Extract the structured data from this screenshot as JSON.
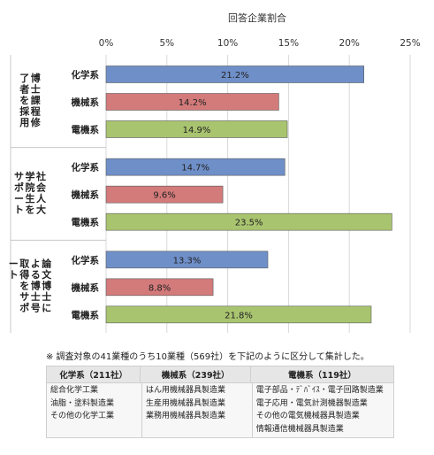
{
  "chart_data": {
    "type": "bar",
    "orientation": "horizontal",
    "title": "回答企業割合",
    "x_ticks": [
      "0%",
      "5%",
      "10%",
      "15%",
      "20%",
      "25%"
    ],
    "xlim": [
      0,
      25
    ],
    "grid": true,
    "colors": {
      "化学系": "#6f8fc8",
      "機械系": "#d37a7a",
      "電機系": "#a9c46f"
    },
    "groups": [
      {
        "label": "博士課程修了者を採用",
        "bars": [
          {
            "category": "化学系",
            "value": 21.2,
            "label": "21.2%"
          },
          {
            "category": "機械系",
            "value": 14.2,
            "label": "14.2%"
          },
          {
            "category": "電機系",
            "value": 14.9,
            "label": "14.9%"
          }
        ]
      },
      {
        "label": "社会人大学院生をサポート",
        "bars": [
          {
            "category": "化学系",
            "value": 14.7,
            "label": "14.7%"
          },
          {
            "category": "機械系",
            "value": 9.6,
            "label": "9.6%"
          },
          {
            "category": "電機系",
            "value": 23.5,
            "label": "23.5%"
          }
        ]
      },
      {
        "label": "論文博士による博士号取得をサポート",
        "bars": [
          {
            "category": "化学系",
            "value": 13.3,
            "label": "13.3%"
          },
          {
            "category": "機械系",
            "value": 8.8,
            "label": "8.8%"
          },
          {
            "category": "電機系",
            "value": 21.8,
            "label": "21.8%"
          }
        ]
      }
    ]
  },
  "note": "※ 調査対象の41業種のうち10業種（569社）を下記のように区分して集計した。",
  "category_table": {
    "columns": [
      {
        "header": "化学系（211社）",
        "items": [
          "総合化学工業",
          "油脂・塗料製造業",
          "その他の化学工業"
        ]
      },
      {
        "header": "機械系（239社）",
        "items": [
          "はん用機械器具製造業",
          "生産用機械器具製造業",
          "業務用機械器具製造業"
        ]
      },
      {
        "header": "電機系（119社）",
        "items": [
          "電子部品・ﾃﾞﾊﾞｲｽ・電子回路製造業",
          "電子応用・電気計測機器製造業",
          "その他の電気機械器具製造業",
          "情報通信機械器具製造業"
        ]
      }
    ]
  }
}
